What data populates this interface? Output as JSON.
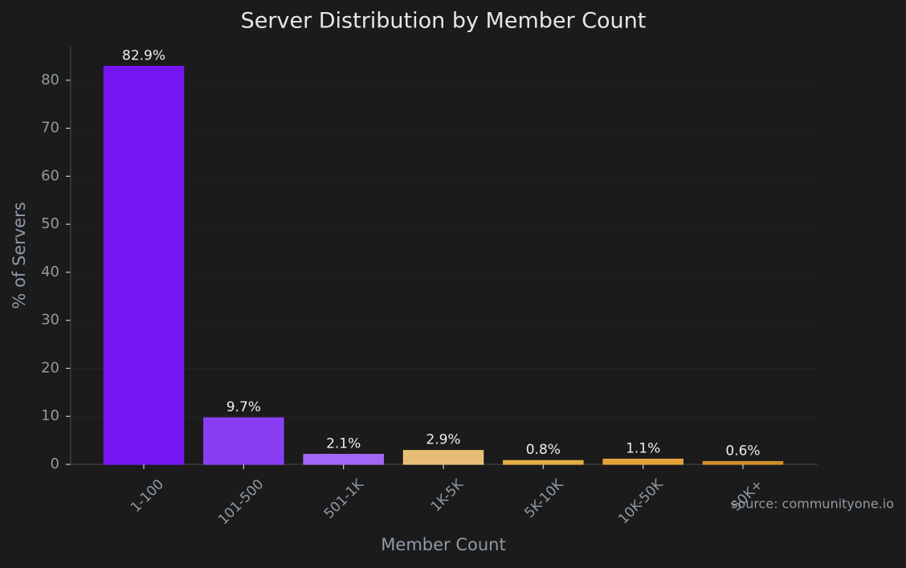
{
  "chart_data": {
    "type": "bar",
    "title": "Server Distribution by Member Count",
    "x_label": "Member Count",
    "y_label": "% of Servers",
    "categories": [
      "1-100",
      "101-500",
      "501-1K",
      "1K-5K",
      "5K-10K",
      "10K-50K",
      "50K+"
    ],
    "values": [
      82.9,
      9.7,
      2.1,
      2.9,
      0.8,
      1.1,
      0.6
    ],
    "value_labels": [
      "82.9%",
      "9.7%",
      "2.1%",
      "2.9%",
      "0.8%",
      "1.1%",
      "0.6%"
    ],
    "colors": [
      "#7b16ff",
      "#9040ff",
      "#a66cff",
      "#f2c77a",
      "#efb444",
      "#eda938",
      "#d9952a"
    ],
    "ylim": [
      0,
      87
    ],
    "yticks": [
      0,
      10,
      20,
      30,
      40,
      50,
      60,
      70,
      80
    ],
    "grid": true,
    "annotation": "source: communityone.io"
  }
}
